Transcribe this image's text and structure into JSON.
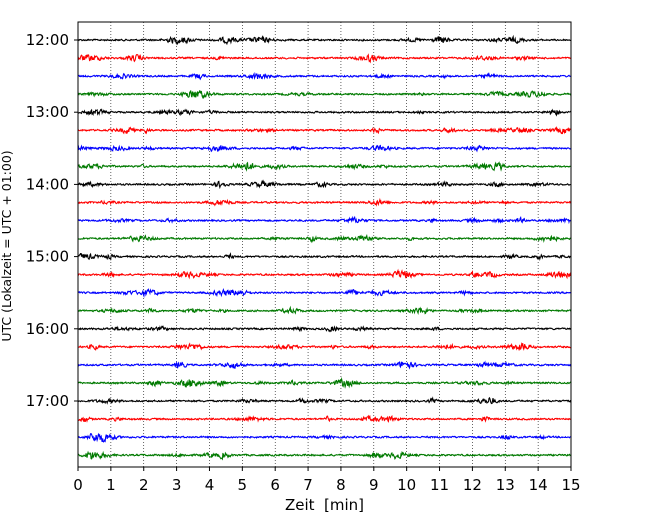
{
  "chart_data": {
    "type": "line",
    "title": "",
    "xlabel": "Zeit  [min]",
    "ylabel": "UTC (Lokalzeit = UTC + 01:00)",
    "xlim": [
      0,
      15
    ],
    "xticks": [
      0,
      1,
      2,
      3,
      4,
      5,
      6,
      7,
      8,
      9,
      10,
      11,
      12,
      13,
      14,
      15
    ],
    "grid": "vertical dotted",
    "legend": "none",
    "row_interval_min": 15,
    "row_colors": [
      "#000000",
      "#ff0000",
      "#0000ff",
      "#007a00"
    ],
    "rows": [
      "12:00",
      "12:15",
      "12:30",
      "12:45",
      "13:00",
      "13:15",
      "13:30",
      "13:45",
      "14:00",
      "14:15",
      "14:30",
      "14:45",
      "15:00",
      "15:15",
      "15:30",
      "15:45",
      "16:00",
      "16:15",
      "16:30",
      "16:45",
      "17:00",
      "17:15",
      "17:30",
      "17:45"
    ],
    "hour_ticks": [
      "12:00",
      "13:00",
      "14:00",
      "15:00",
      "16:00",
      "17:00"
    ]
  }
}
